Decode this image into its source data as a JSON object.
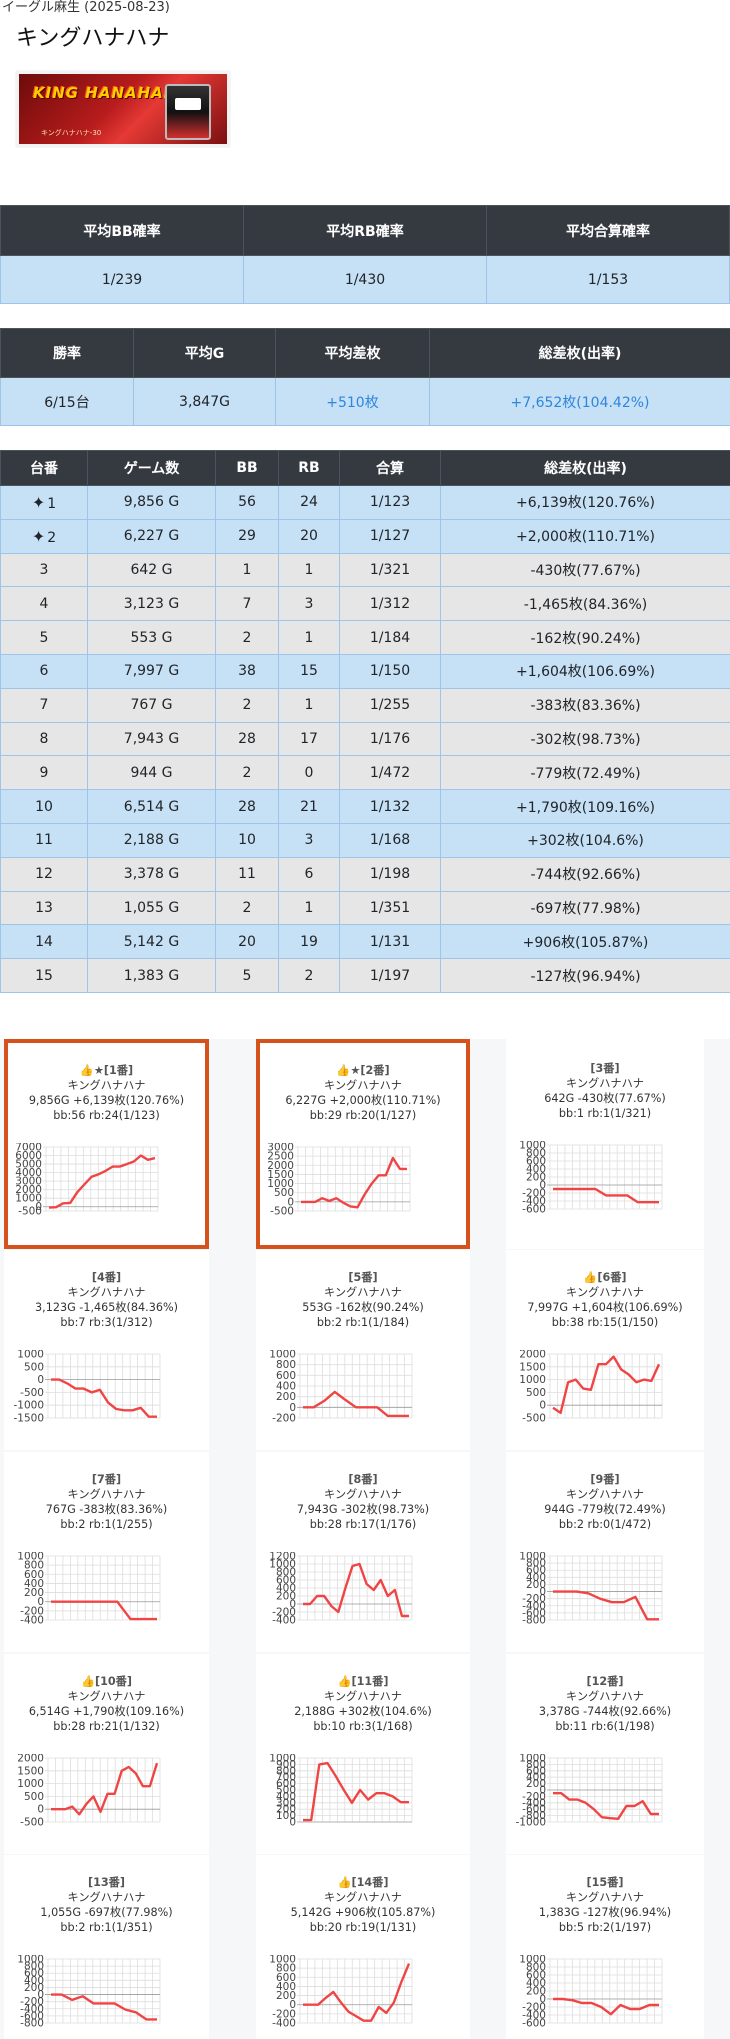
{
  "header": {
    "subtitle": "イーグル麻生 (2025-08-23)",
    "title": "キングハナハナ",
    "banner_logo": "KING HANAHANA",
    "banner_sub": "キングハナハナ-30"
  },
  "summary1": {
    "headers": [
      "平均BB確率",
      "平均RB確率",
      "平均合算確率"
    ],
    "values": [
      "1/239",
      "1/430",
      "1/153"
    ]
  },
  "summary2": {
    "headers": [
      "勝率",
      "平均G",
      "平均差枚",
      "総差枚(出率)"
    ],
    "values": [
      "6/15台",
      "3,847G",
      "+510枚",
      "+7,652枚(104.42%)"
    ]
  },
  "machines": {
    "headers": [
      "台番",
      "ゲーム数",
      "BB",
      "RB",
      "合算",
      "総差枚(出率)"
    ],
    "rows": [
      {
        "no": "1",
        "games": "9,856 G",
        "bb": "56",
        "rb": "24",
        "total": "1/123",
        "diff": "+6,139枚(120.76%)",
        "pos": true,
        "star": true
      },
      {
        "no": "2",
        "games": "6,227 G",
        "bb": "29",
        "rb": "20",
        "total": "1/127",
        "diff": "+2,000枚(110.71%)",
        "pos": true,
        "star": true
      },
      {
        "no": "3",
        "games": "642 G",
        "bb": "1",
        "rb": "1",
        "total": "1/321",
        "diff": "-430枚(77.67%)",
        "pos": false,
        "star": false
      },
      {
        "no": "4",
        "games": "3,123 G",
        "bb": "7",
        "rb": "3",
        "total": "1/312",
        "diff": "-1,465枚(84.36%)",
        "pos": false,
        "star": false
      },
      {
        "no": "5",
        "games": "553 G",
        "bb": "2",
        "rb": "1",
        "total": "1/184",
        "diff": "-162枚(90.24%)",
        "pos": false,
        "star": false
      },
      {
        "no": "6",
        "games": "7,997 G",
        "bb": "38",
        "rb": "15",
        "total": "1/150",
        "diff": "+1,604枚(106.69%)",
        "pos": true,
        "star": false
      },
      {
        "no": "7",
        "games": "767 G",
        "bb": "2",
        "rb": "1",
        "total": "1/255",
        "diff": "-383枚(83.36%)",
        "pos": false,
        "star": false
      },
      {
        "no": "8",
        "games": "7,943 G",
        "bb": "28",
        "rb": "17",
        "total": "1/176",
        "diff": "-302枚(98.73%)",
        "pos": false,
        "star": false
      },
      {
        "no": "9",
        "games": "944 G",
        "bb": "2",
        "rb": "0",
        "total": "1/472",
        "diff": "-779枚(72.49%)",
        "pos": false,
        "star": false
      },
      {
        "no": "10",
        "games": "6,514 G",
        "bb": "28",
        "rb": "21",
        "total": "1/132",
        "diff": "+1,790枚(109.16%)",
        "pos": true,
        "star": false
      },
      {
        "no": "11",
        "games": "2,188 G",
        "bb": "10",
        "rb": "3",
        "total": "1/168",
        "diff": "+302枚(104.6%)",
        "pos": true,
        "star": false
      },
      {
        "no": "12",
        "games": "3,378 G",
        "bb": "11",
        "rb": "6",
        "total": "1/198",
        "diff": "-744枚(92.66%)",
        "pos": false,
        "star": false
      },
      {
        "no": "13",
        "games": "1,055 G",
        "bb": "2",
        "rb": "1",
        "total": "1/351",
        "diff": "-697枚(77.98%)",
        "pos": false,
        "star": false
      },
      {
        "no": "14",
        "games": "5,142 G",
        "bb": "20",
        "rb": "19",
        "total": "1/131",
        "diff": "+906枚(105.87%)",
        "pos": true,
        "star": false
      },
      {
        "no": "15",
        "games": "1,383 G",
        "bb": "5",
        "rb": "2",
        "total": "1/197",
        "diff": "-127枚(96.94%)",
        "pos": false,
        "star": false
      }
    ]
  },
  "chart_data": [
    {
      "type": "line",
      "title": "👍★[1番]",
      "line1": "キングハナハナ",
      "line2": "9,856G +6,139枚(120.76%)",
      "line3": "bb:56 rb:24(1/123)",
      "ylim": [
        -500,
        7000
      ],
      "yticks": [
        7000,
        6000,
        5000,
        4000,
        3000,
        2000,
        1000,
        0,
        -500
      ],
      "values": [
        -100,
        -50,
        400,
        450,
        1700,
        2600,
        3500,
        3800,
        4200,
        4700,
        4700,
        5000,
        5300,
        6000,
        5500,
        5700
      ],
      "grid": true
    },
    {
      "type": "line",
      "title": "👍★[2番]",
      "line1": "キングハナハナ",
      "line2": "6,227G +2,000枚(110.71%)",
      "line3": "bb:29 rb:20(1/127)",
      "ylim": [
        -500,
        3000
      ],
      "yticks": [
        3000,
        2500,
        2000,
        1500,
        1000,
        500,
        0,
        -500
      ],
      "values": [
        0,
        0,
        0,
        200,
        50,
        200,
        -50,
        -250,
        -300,
        400,
        1000,
        1450,
        1450,
        2400,
        1800,
        1800
      ],
      "grid": true
    },
    {
      "type": "line",
      "title": "[3番]",
      "line1": "キングハナハナ",
      "line2": "642G -430枚(77.67%)",
      "line3": "bb:1 rb:1(1/321)",
      "ylim": [
        -600,
        1000
      ],
      "yticks": [
        1000,
        800,
        600,
        400,
        200,
        0,
        -200,
        -400,
        -600
      ],
      "values": [
        -100,
        -100,
        -100,
        -100,
        -100,
        -260,
        -260,
        -260,
        -430,
        -430,
        -430
      ],
      "grid": true
    },
    {
      "type": "line",
      "title": "[4番]",
      "line1": "キングハナハナ",
      "line2": "3,123G -1,465枚(84.36%)",
      "line3": "bb:7 rb:3(1/312)",
      "ylim": [
        -1500,
        1000
      ],
      "yticks": [
        1000,
        500,
        0,
        -500,
        -1000,
        -1500
      ],
      "values": [
        0,
        0,
        -150,
        -350,
        -350,
        -500,
        -400,
        -900,
        -1150,
        -1200,
        -1200,
        -1100,
        -1450,
        -1450
      ],
      "grid": true
    },
    {
      "type": "line",
      "title": "[5番]",
      "line1": "キングハナハナ",
      "line2": "553G -162枚(90.24%)",
      "line3": "bb:2 rb:1(1/184)",
      "ylim": [
        -200,
        1000
      ],
      "yticks": [
        1000,
        800,
        600,
        400,
        200,
        0,
        -200
      ],
      "values": [
        0,
        0,
        120,
        290,
        140,
        0,
        0,
        0,
        -160,
        -160,
        -160
      ],
      "grid": true
    },
    {
      "type": "line",
      "title": "👍[6番]",
      "line1": "キングハナハナ",
      "line2": "7,997G +1,604枚(106.69%)",
      "line3": "bb:38 rb:15(1/150)",
      "ylim": [
        -500,
        2000
      ],
      "yticks": [
        2000,
        1500,
        1000,
        500,
        0,
        -500
      ],
      "values": [
        -100,
        -300,
        900,
        1000,
        650,
        600,
        1600,
        1600,
        1900,
        1400,
        1200,
        900,
        1000,
        950,
        1600
      ],
      "grid": true
    },
    {
      "type": "line",
      "title": "[7番]",
      "line1": "キングハナハナ",
      "line2": "767G -383枚(83.36%)",
      "line3": "bb:2 rb:1(1/255)",
      "ylim": [
        -400,
        1000
      ],
      "yticks": [
        1000,
        800,
        600,
        400,
        200,
        0,
        -200,
        -400
      ],
      "values": [
        0,
        0,
        0,
        0,
        0,
        0,
        -380,
        -380,
        -380
      ],
      "grid": true
    },
    {
      "type": "line",
      "title": "[8番]",
      "line1": "キングハナハナ",
      "line2": "7,943G -302枚(98.73%)",
      "line3": "bb:28 rb:17(1/176)",
      "ylim": [
        -400,
        1200
      ],
      "yticks": [
        1200,
        1000,
        800,
        600,
        400,
        200,
        0,
        -200,
        -400
      ],
      "values": [
        0,
        0,
        200,
        200,
        -50,
        -200,
        400,
        950,
        1000,
        500,
        350,
        600,
        200,
        350,
        -300,
        -300
      ],
      "grid": true
    },
    {
      "type": "line",
      "title": "[9番]",
      "line1": "キングハナハナ",
      "line2": "944G -779枚(72.49%)",
      "line3": "bb:2 rb:0(1/472)",
      "ylim": [
        -800,
        1000
      ],
      "yticks": [
        1000,
        800,
        600,
        400,
        200,
        0,
        -200,
        -400,
        -600,
        -800
      ],
      "values": [
        0,
        0,
        0,
        -50,
        -200,
        -300,
        -300,
        -150,
        -780,
        -780
      ],
      "grid": true
    },
    {
      "type": "line",
      "title": "👍[10番]",
      "line1": "キングハナハナ",
      "line2": "6,514G +1,790枚(109.16%)",
      "line3": "bb:28 rb:21(1/132)",
      "ylim": [
        -500,
        2000
      ],
      "yticks": [
        2000,
        1500,
        1000,
        500,
        0,
        -500
      ],
      "values": [
        0,
        0,
        0,
        100,
        -200,
        200,
        500,
        -100,
        600,
        600,
        1500,
        1650,
        1400,
        900,
        900,
        1800
      ],
      "grid": true
    },
    {
      "type": "line",
      "title": "👍[11番]",
      "line1": "キングハナハナ",
      "line2": "2,188G +302枚(104.6%)",
      "line3": "bb:10 rb:3(1/168)",
      "ylim": [
        0,
        1000
      ],
      "yticks": [
        1000,
        900,
        800,
        700,
        600,
        500,
        400,
        300,
        200,
        100,
        0
      ],
      "values": [
        30,
        30,
        900,
        920,
        720,
        500,
        300,
        500,
        350,
        450,
        450,
        400,
        310,
        310
      ],
      "grid": true
    },
    {
      "type": "line",
      "title": "[12番]",
      "line1": "キングハナハナ",
      "line2": "3,378G -744枚(92.66%)",
      "line3": "bb:11 rb:6(1/198)",
      "ylim": [
        -1000,
        1000
      ],
      "yticks": [
        1000,
        800,
        600,
        400,
        200,
        0,
        -200,
        -400,
        -600,
        -800,
        -1000
      ],
      "values": [
        -100,
        -100,
        -300,
        -300,
        -400,
        -600,
        -850,
        -880,
        -900,
        -500,
        -500,
        -350,
        -750,
        -750
      ],
      "grid": true
    },
    {
      "type": "line",
      "title": "[13番]",
      "line1": "キングハナハナ",
      "line2": "1,055G -697枚(77.98%)",
      "line3": "bb:2 rb:1(1/351)",
      "ylim": [
        -800,
        1000
      ],
      "yticks": [
        1000,
        800,
        600,
        400,
        200,
        0,
        -200,
        -400,
        -600,
        -800
      ],
      "values": [
        0,
        0,
        -150,
        -50,
        -250,
        -250,
        -250,
        -420,
        -500,
        -700,
        -700
      ],
      "grid": true
    },
    {
      "type": "line",
      "title": "👍[14番]",
      "line1": "キングハナハナ",
      "line2": "5,142G +906枚(105.87%)",
      "line3": "bb:20 rb:19(1/131)",
      "ylim": [
        -400,
        1000
      ],
      "yticks": [
        1000,
        800,
        600,
        400,
        200,
        0,
        -200,
        -400
      ],
      "values": [
        0,
        0,
        0,
        150,
        280,
        50,
        -150,
        -250,
        -350,
        -350,
        -50,
        -180,
        50,
        500,
        900
      ],
      "grid": true
    },
    {
      "type": "line",
      "title": "[15番]",
      "line1": "キングハナハナ",
      "line2": "1,383G -127枚(96.94%)",
      "line3": "bb:5 rb:2(1/197)",
      "ylim": [
        -600,
        1000
      ],
      "yticks": [
        1000,
        800,
        600,
        400,
        200,
        0,
        -200,
        -400,
        -600
      ],
      "values": [
        0,
        0,
        -30,
        -100,
        -100,
        -200,
        -380,
        -150,
        -250,
        -250,
        -150,
        -150
      ],
      "grid": true
    }
  ],
  "colors": {
    "header_bg": "#343a40",
    "positive_row": "#c6e0f5",
    "negative_row": "#e6e6e6",
    "highlight_border": "#d6521c",
    "chart_line": "#f04545",
    "accent_blue": "#2e86de"
  }
}
